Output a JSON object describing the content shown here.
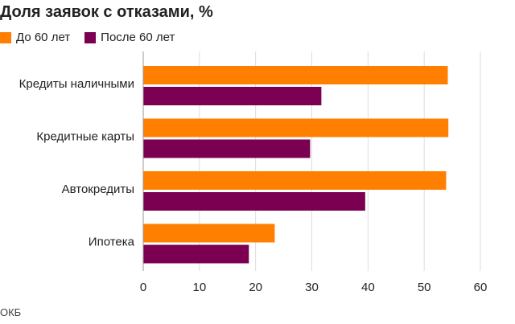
{
  "chart_data": {
    "type": "bar",
    "orientation": "horizontal",
    "title": "Доля заявок с отказами, %",
    "categories": [
      "Кредиты наличными",
      "Кредитные карты",
      "Автокредиты",
      "Ипотека"
    ],
    "series": [
      {
        "name": "До 60 лет",
        "color": "#ff7f00",
        "values": [
          54.2,
          54.3,
          53.9,
          23.4
        ]
      },
      {
        "name": "После 60 лет",
        "color": "#7b0051",
        "values": [
          31.7,
          29.7,
          39.5,
          18.8
        ]
      }
    ],
    "xlim": [
      0,
      60
    ],
    "xticks": [
      "0",
      "10",
      "20",
      "30",
      "40",
      "50",
      "60"
    ],
    "grid": true,
    "legend_position": "top-left",
    "source": "ОКБ"
  }
}
